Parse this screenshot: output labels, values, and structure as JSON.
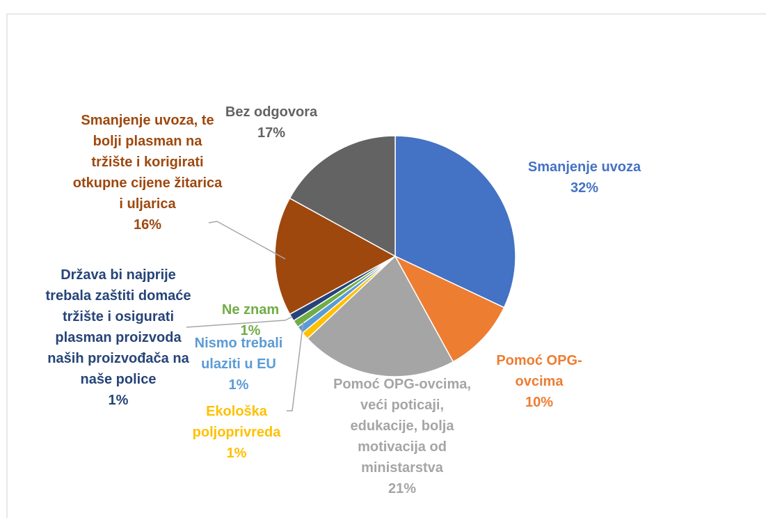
{
  "chart_data": {
    "type": "pie",
    "categories": [
      "Smanjenje uvoza",
      "Pomoć OPG-ovcima",
      "Pomoć OPG-ovcima, veći poticaji, edukacije, bolja motivacija od ministarstva",
      "Ekološka poljoprivreda",
      "Nismo trebali ulaziti u EU",
      "Ne znam",
      "Država bi najprije trebala zaštiti domaće tržište i osigurati plasman proizvoda naših proizvođača  na naše police",
      "Smanjenje uvoza, te bolji plasman na tržište i korigirati otkupne cijene žitarica i uljarica",
      "Bez odgovora"
    ],
    "values": [
      32,
      10,
      21,
      1,
      1,
      1,
      1,
      16,
      17
    ],
    "value_labels": [
      "32%",
      "10%",
      "21%",
      "1%",
      "1%",
      "1%",
      "1%",
      "16%",
      "17%"
    ],
    "colors": [
      "#4472c4",
      "#ed7d31",
      "#a5a5a5",
      "#ffc000",
      "#5b9bd5",
      "#70ad47",
      "#264478",
      "#9e480e",
      "#636363"
    ]
  }
}
